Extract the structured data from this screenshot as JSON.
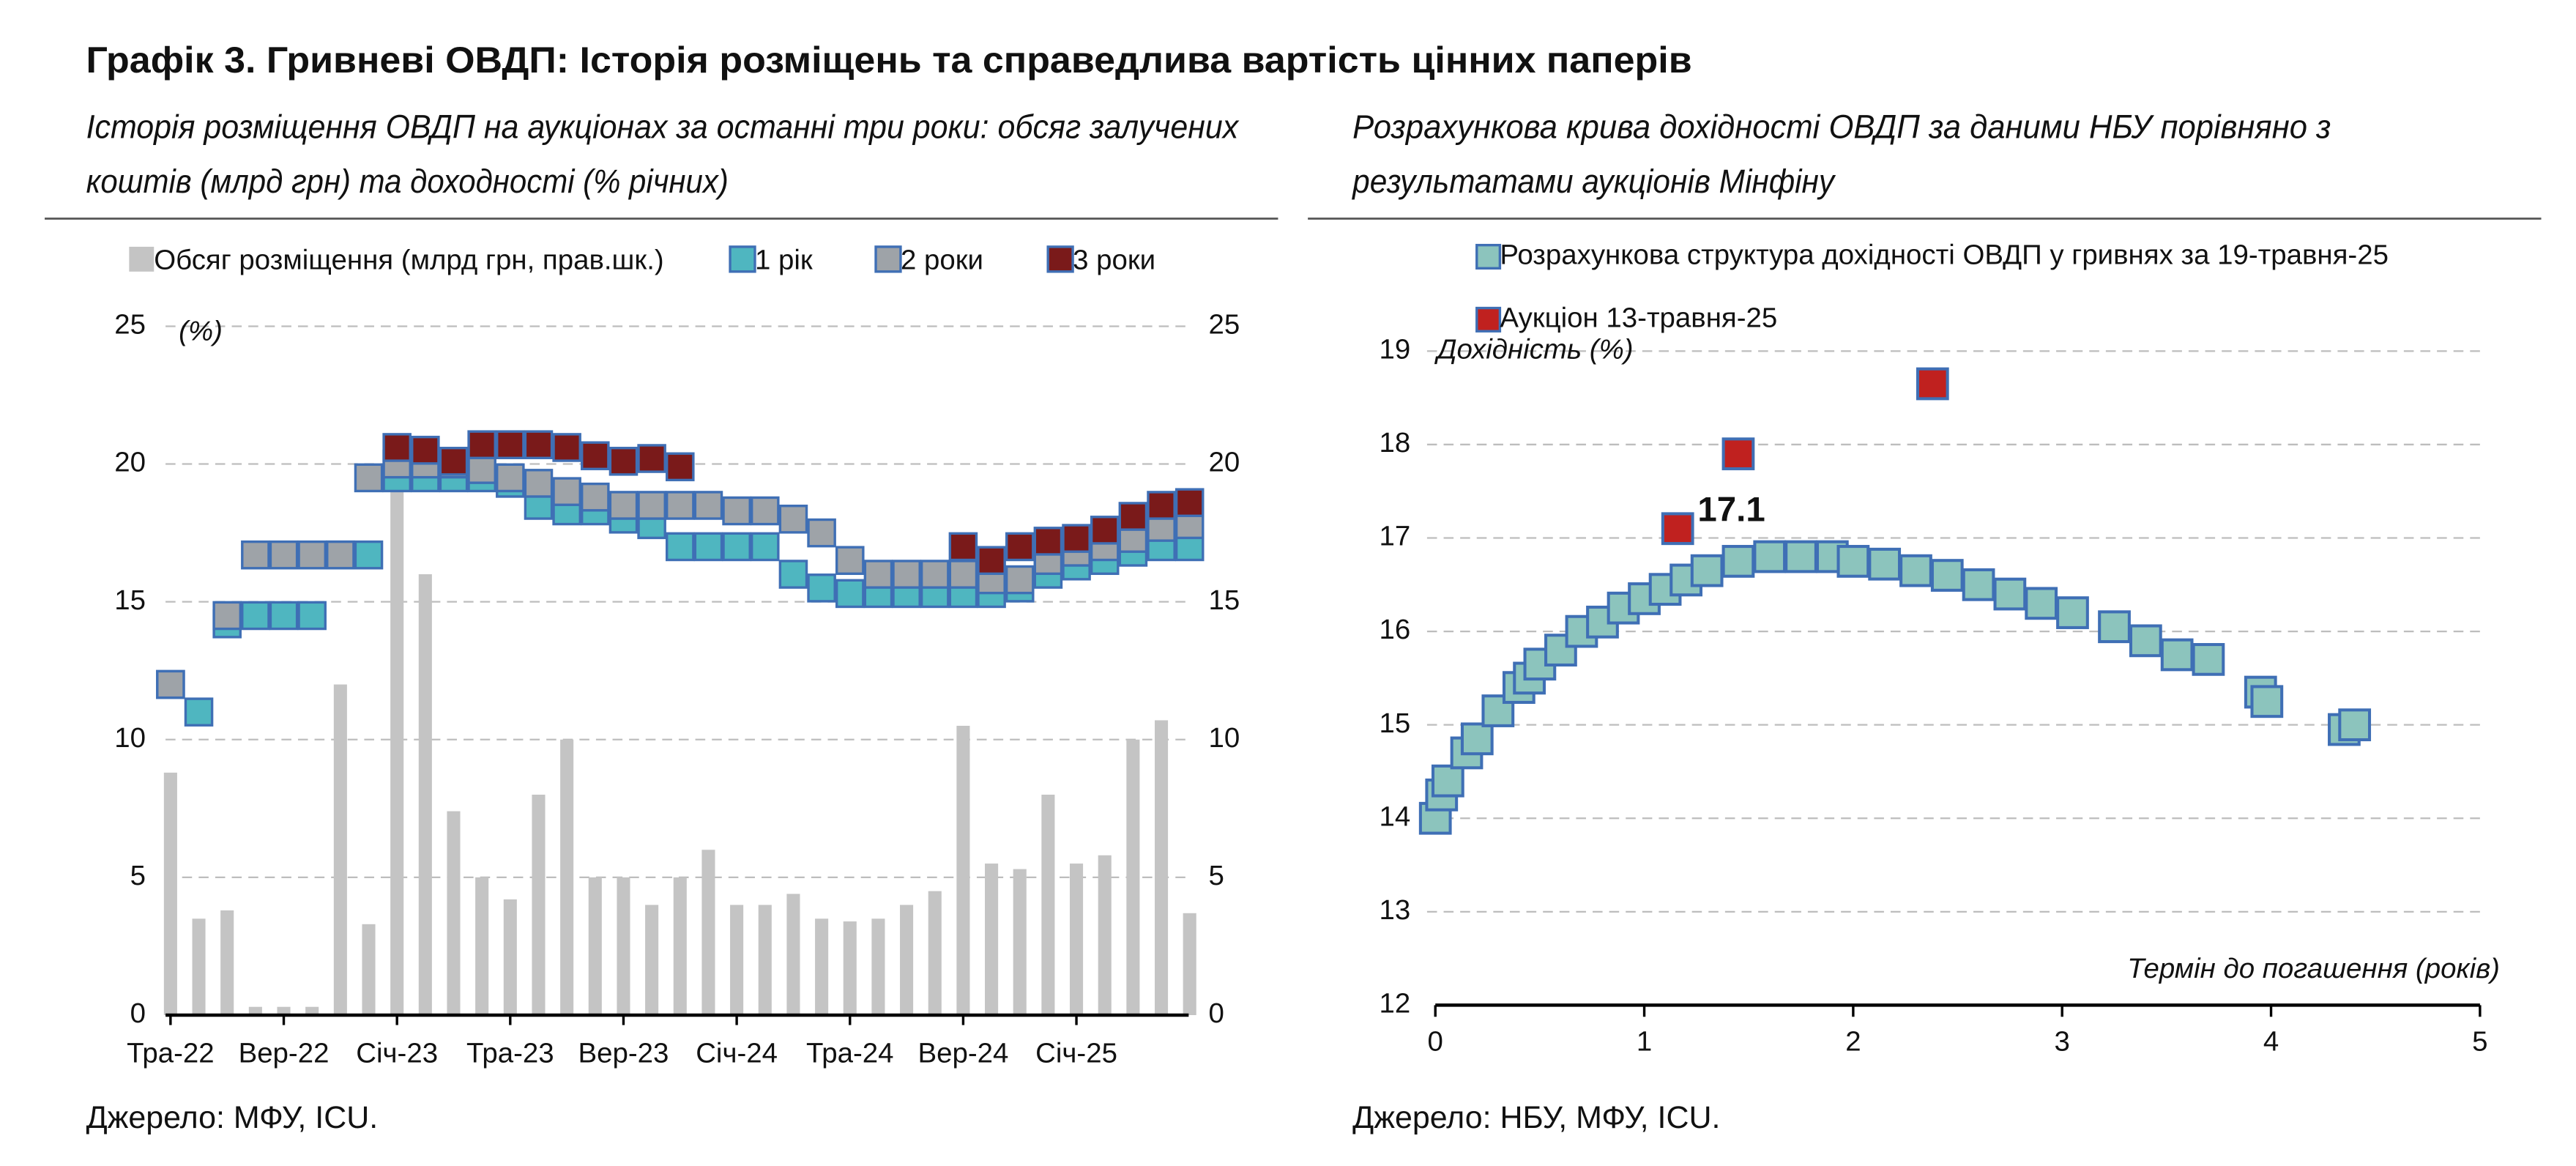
{
  "header": {
    "title": "Графік 3. Гривневі ОВДП: Історія розміщень та справедлива вартість цінних паперів"
  },
  "chart_data": [
    {
      "type": "combo",
      "subtitle": [
        "Історія розміщення ОВДП на аукціонах за останні три роки: обсяг залучених",
        "коштів (млрд грн) та доходності (% річних)"
      ],
      "ylabel": "(%)",
      "categories": [
        "Тра-22",
        null,
        null,
        null,
        "Вер-22",
        null,
        null,
        null,
        "Січ-23",
        null,
        null,
        null,
        "Тра-23",
        null,
        null,
        null,
        "Вер-23",
        null,
        null,
        null,
        "Січ-24",
        null,
        null,
        null,
        "Тра-24",
        null,
        null,
        null,
        "Вер-24",
        null,
        null,
        null,
        "Січ-25",
        null,
        null,
        null,
        null
      ],
      "ylim": [
        0,
        25
      ],
      "yticks": [
        0,
        5,
        10,
        15,
        20,
        25
      ],
      "y2lim": [
        0,
        25
      ],
      "y2ticks": [
        0,
        5,
        10,
        15,
        20,
        25
      ],
      "grid": true,
      "series": [
        {
          "name": "Обсяг розміщення (млрд грн, прав.шк.)",
          "type": "bar",
          "axis": "y2",
          "color": "#c4c4c4",
          "values": [
            8.8,
            3.5,
            3.8,
            0.3,
            0.3,
            0.3,
            12,
            3.3,
            19,
            16,
            7.4,
            5,
            4.2,
            8,
            10,
            5,
            5,
            4,
            5,
            6,
            4,
            4,
            4.4,
            3.5,
            3.4,
            3.5,
            4,
            4.5,
            10.5,
            5.5,
            5.3,
            8,
            5.5,
            5.8,
            10,
            10.7,
            3.7
          ]
        },
        {
          "name": "1 рік",
          "type": "scatter",
          "color": "#4fb6c0",
          "values": [
            12,
            11,
            14.2,
            14.5,
            14.5,
            14.5,
            16.7,
            16.7,
            19.5,
            19.5,
            19.5,
            19.5,
            19.3,
            18.5,
            18.3,
            18.3,
            18,
            17.8,
            17,
            17,
            17,
            17,
            16,
            15.5,
            15.3,
            15.3,
            15.3,
            15.3,
            15.3,
            15.3,
            15.5,
            16,
            16.3,
            16.5,
            16.8,
            17,
            17
          ]
        },
        {
          "name": "2 роки",
          "type": "scatter",
          "color": "#9ea3a8",
          "values": [
            12,
            null,
            14.5,
            16.7,
            16.7,
            16.7,
            16.7,
            19.5,
            20,
            20,
            20,
            19.8,
            19.5,
            19.3,
            19,
            18.8,
            18.5,
            18.5,
            18.5,
            18.5,
            18.3,
            18.3,
            18,
            17.5,
            16.5,
            16,
            16,
            16,
            16,
            15.8,
            15.8,
            16.5,
            16.8,
            17,
            17.3,
            17.7,
            17.8
          ]
        },
        {
          "name": "3 роки",
          "type": "scatter",
          "color": "#7a1a1a",
          "values": [
            null,
            null,
            null,
            null,
            null,
            null,
            null,
            null,
            20.6,
            20.5,
            20.1,
            20.7,
            20.7,
            20.7,
            20.6,
            20.3,
            20.1,
            20.2,
            19.9,
            null,
            null,
            null,
            null,
            null,
            null,
            null,
            null,
            null,
            17,
            16.5,
            17,
            17.2,
            17.3,
            17.6,
            18.1,
            18.5,
            18.6
          ]
        }
      ],
      "source": "Джерело: МФУ, ICU."
    },
    {
      "type": "scatter",
      "subtitle": [
        "Розрахункова крива дохідності ОВДП за даними НБУ порівняно з",
        "результатами аукціонів Мінфіну"
      ],
      "ylabel": "Дохідність (%)",
      "xlabel": "Термін до погашення (років)",
      "xlim": [
        0,
        5
      ],
      "xticks": [
        0,
        1,
        2,
        3,
        4,
        5
      ],
      "ylim": [
        12,
        19
      ],
      "yticks": [
        12,
        13,
        14,
        15,
        16,
        17,
        18,
        19
      ],
      "grid": true,
      "series": [
        {
          "name": "Розрахункова структура дохідності ОВДП у гривнях за 19-травня-25",
          "color": "#8cc4bd",
          "x": [
            0,
            0.03,
            0.06,
            0.15,
            0.2,
            0.3,
            0.4,
            0.45,
            0.5,
            0.6,
            0.7,
            0.8,
            0.9,
            1.0,
            1.1,
            1.2,
            1.3,
            1.45,
            1.6,
            1.75,
            1.9,
            2.0,
            2.15,
            2.3,
            2.45,
            2.6,
            2.75,
            2.9,
            3.05,
            3.25,
            3.4,
            3.55,
            3.7,
            3.95,
            3.98,
            4.35,
            4.4
          ],
          "values": [
            14.0,
            14.25,
            14.4,
            14.7,
            14.85,
            15.15,
            15.4,
            15.5,
            15.65,
            15.8,
            16.0,
            16.1,
            16.25,
            16.35,
            16.45,
            16.55,
            16.65,
            16.75,
            16.8,
            16.8,
            16.8,
            16.75,
            16.72,
            16.65,
            16.6,
            16.5,
            16.4,
            16.3,
            16.2,
            16.05,
            15.9,
            15.75,
            15.7,
            15.35,
            15.25,
            14.95,
            15.0
          ]
        },
        {
          "name": "Аукціон 13-травня-25",
          "color": "#c0211f",
          "x": [
            1.16,
            1.45,
            2.38
          ],
          "values": [
            17.1,
            17.9,
            18.65
          ],
          "value_labels": [
            "17.1",
            null,
            null
          ]
        }
      ],
      "source": "Джерело: НБУ, МФУ, ICU."
    }
  ]
}
